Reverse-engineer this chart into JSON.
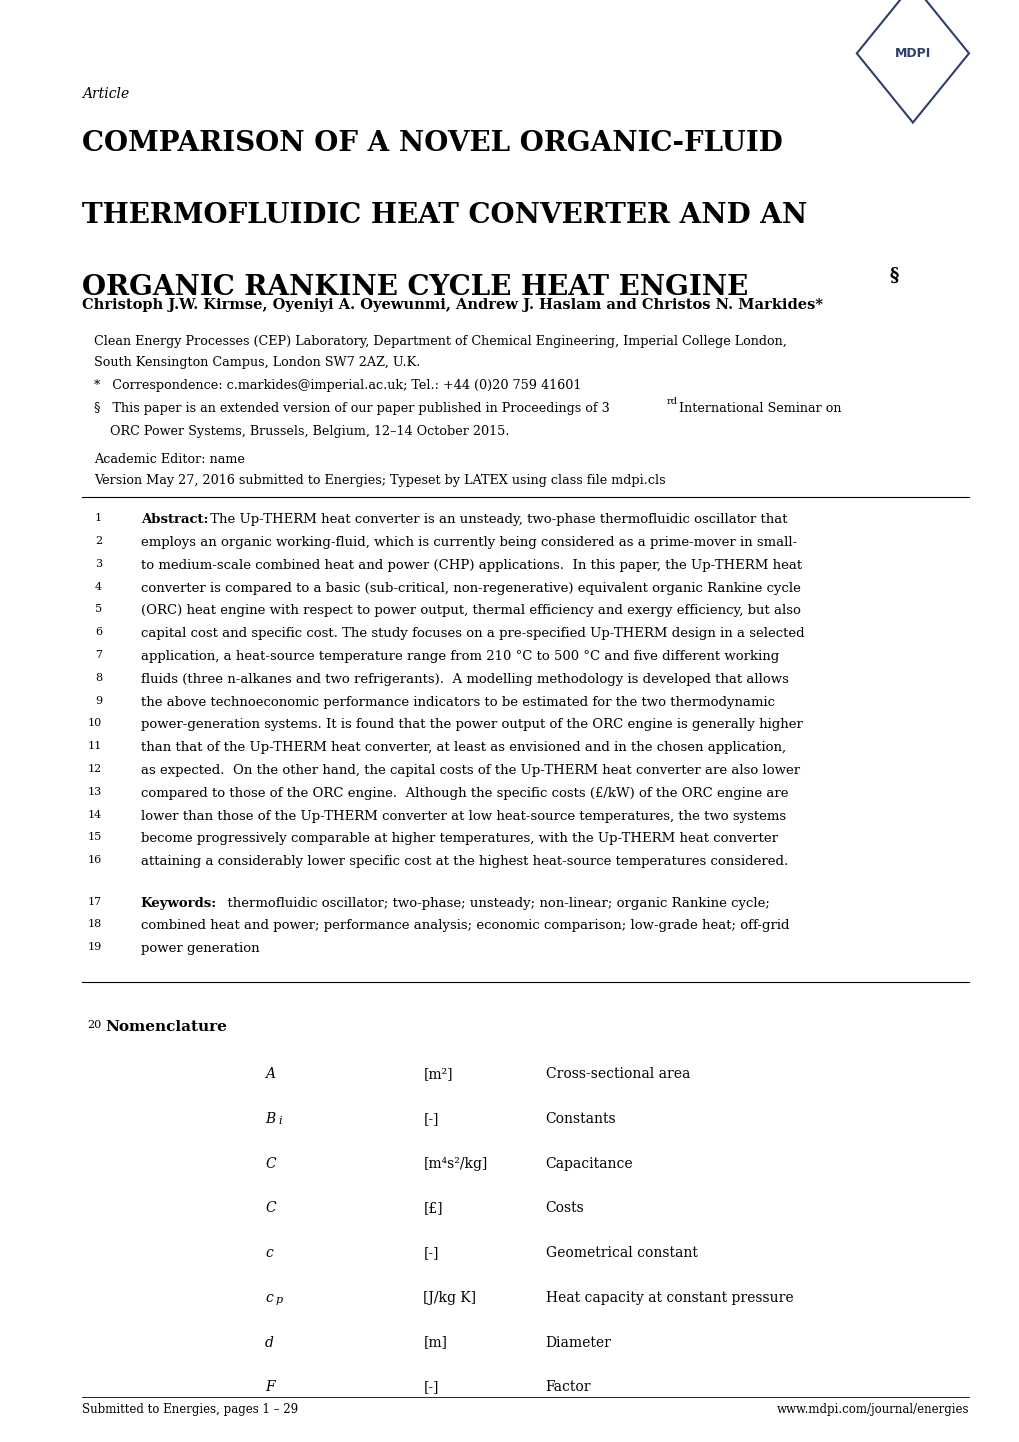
{
  "background_color": "#ffffff",
  "mdpi_color": "#2d3f6b",
  "article_italic": "Article",
  "title_line1": "COMPARISON OF A NOVEL ORGANIC-FLUID",
  "title_line2": "THERMOFLUIDIC HEAT CONVERTER AND AN",
  "title_line3": "ORGANIC RANKINE CYCLE HEAT ENGINE",
  "title_superscript": "§",
  "authors": "Christoph J.W. Kirmse, Oyeniyi A. Oyewunmi, Andrew J. Haslam and Christos N. Markides*",
  "affiliation1": "Clean Energy Processes (CEP) Laboratory, Department of Chemical Engineering, Imperial College London,",
  "affiliation2": "South Kensington Campus, London SW7 2AZ, U.K.",
  "correspondence": "*   Correspondence: c.markides@imperial.ac.uk; Tel.: +44 (0)20 759 41601",
  "footnote": "§   This paper is an extended version of our paper published in Proceedings of 3",
  "footnote_super": "rd",
  "footnote_end": " International Seminar on",
  "footnote2": "    ORC Power Systems, Brussels, Belgium, 12–14 October 2015.",
  "editor": "Academic Editor: name",
  "version": "Version May 27, 2016 submitted to Energies; Typeset by LATEX using class file mdpi.cls",
  "abstract_lines": [
    [
      "1",
      "Abstract:",
      " The Up-THERM heat converter is an unsteady, two-phase thermofluidic oscillator that"
    ],
    [
      "2",
      "",
      "employs an organic working-fluid, which is currently being considered as a prime-mover in small-"
    ],
    [
      "3",
      "",
      "to medium-scale combined heat and power (CHP) applications.  In this paper, the Up-THERM heat"
    ],
    [
      "4",
      "",
      "converter is compared to a basic (sub-critical, non-regenerative) equivalent organic Rankine cycle"
    ],
    [
      "5",
      "",
      "(ORC) heat engine with respect to power output, thermal efficiency and exergy efficiency, but also"
    ],
    [
      "6",
      "",
      "capital cost and specific cost. The study focuses on a pre-specified Up-THERM design in a selected"
    ],
    [
      "7",
      "",
      "application, a heat-source temperature range from 210 °C to 500 °C and five different working"
    ],
    [
      "8",
      "",
      "fluids (three n-alkanes and two refrigerants).  A modelling methodology is developed that allows"
    ],
    [
      "9",
      "",
      "the above technoeconomic performance indicators to be estimated for the two thermodynamic"
    ],
    [
      "10",
      "",
      "power-generation systems. It is found that the power output of the ORC engine is generally higher"
    ],
    [
      "11",
      "",
      "than that of the Up-THERM heat converter, at least as envisioned and in the chosen application,"
    ],
    [
      "12",
      "",
      "as expected.  On the other hand, the capital costs of the Up-THERM heat converter are also lower"
    ],
    [
      "13",
      "",
      "compared to those of the ORC engine.  Although the specific costs (£/kW) of the ORC engine are"
    ],
    [
      "14",
      "",
      "lower than those of the Up-THERM converter at low heat-source temperatures, the two systems"
    ],
    [
      "15",
      "",
      "become progressively comparable at higher temperatures, with the Up-THERM heat converter"
    ],
    [
      "16",
      "",
      "attaining a considerably lower specific cost at the highest heat-source temperatures considered."
    ]
  ],
  "keywords_lines": [
    [
      "17",
      "Keywords:",
      "  thermofluidic oscillator; two-phase; unsteady; non-linear; organic Rankine cycle;"
    ],
    [
      "18",
      "",
      "combined heat and power; performance analysis; economic comparison; low-grade heat; off-grid"
    ],
    [
      "19",
      "",
      "power generation"
    ]
  ],
  "nomenclature_title": "Nomenclature",
  "nomenclature_line_num": "20",
  "nomenclature": [
    [
      "A",
      "[m²]",
      "Cross-sectional area"
    ],
    [
      "Bi",
      "[-]",
      "Constants"
    ],
    [
      "C",
      "[m⁴s²/kg]",
      "Capacitance"
    ],
    [
      "C",
      "[£]",
      "Costs"
    ],
    [
      "c",
      "[-]",
      "Geometrical constant"
    ],
    [
      "cp",
      "[J/kg K]",
      "Heat capacity at constant pressure"
    ],
    [
      "d",
      "[m]",
      "Diameter"
    ],
    [
      "F",
      "[-]",
      "Factor"
    ]
  ],
  "footer_left": "Submitted to Energies, pages 1 – 29",
  "footer_right": "www.mdpi.com/journal/energies"
}
